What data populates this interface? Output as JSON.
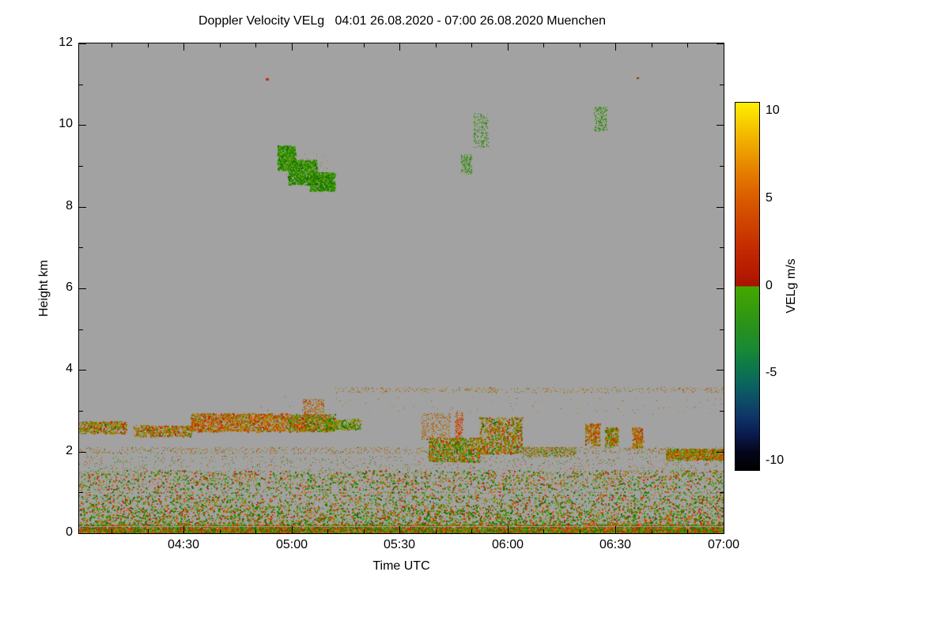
{
  "chart_data": {
    "type": "heatmap",
    "title": "Doppler Velocity VELg   04:01 26.08.2020 - 07:00 26.08.2020 Muenchen",
    "xlabel": "Time UTC",
    "ylabel": "Height km",
    "station": "Muenchen",
    "time_start_label": "04:01 26.08.2020",
    "time_end_label": "07:00 26.08.2020",
    "x_range_minutes": [
      241,
      420
    ],
    "ylim": [
      0,
      12
    ],
    "x_ticks": [
      {
        "minute": 270,
        "label": "04:30"
      },
      {
        "minute": 300,
        "label": "05:00"
      },
      {
        "minute": 330,
        "label": "05:30"
      },
      {
        "minute": 360,
        "label": "06:00"
      },
      {
        "minute": 390,
        "label": "06:30"
      },
      {
        "minute": 420,
        "label": "07:00"
      }
    ],
    "x_minor_minutes": [
      250,
      260,
      280,
      290,
      310,
      320,
      340,
      350,
      370,
      380,
      400,
      410
    ],
    "y_ticks": [
      {
        "km": 0,
        "label": "0"
      },
      {
        "km": 2,
        "label": "2"
      },
      {
        "km": 4,
        "label": "4"
      },
      {
        "km": 6,
        "label": "6"
      },
      {
        "km": 8,
        "label": "8"
      },
      {
        "km": 10,
        "label": "10"
      },
      {
        "km": 12,
        "label": "12"
      }
    ],
    "y_minor_km": [
      1,
      3,
      5,
      7,
      9,
      11
    ],
    "no_data_color": "#a2a2a2",
    "seed": 42,
    "colorbar": {
      "label": "VELg m/s",
      "vmin": -10.5,
      "vmax": 10.5,
      "ticks": [
        {
          "value": 10,
          "label": "10"
        },
        {
          "value": 5,
          "label": "5"
        },
        {
          "value": 0,
          "label": "0"
        },
        {
          "value": -5,
          "label": "-5"
        },
        {
          "value": -10,
          "label": "-10"
        }
      ],
      "stops": [
        [
          -10.5,
          "#000000"
        ],
        [
          -9.5,
          "#05051a"
        ],
        [
          -8.5,
          "#0a1a4d"
        ],
        [
          -7.5,
          "#0e3366"
        ],
        [
          -6.5,
          "#0d4d66"
        ],
        [
          -5.5,
          "#0b665c"
        ],
        [
          -4.5,
          "#0d7a48"
        ],
        [
          -3.5,
          "#1a8a33"
        ],
        [
          -2.5,
          "#278f1f"
        ],
        [
          -1.5,
          "#339910"
        ],
        [
          -0.5,
          "#3fa303"
        ],
        [
          -0.02,
          "#44a800"
        ],
        [
          0.02,
          "#a81200"
        ],
        [
          0.8,
          "#b51b00"
        ],
        [
          2,
          "#c22800"
        ],
        [
          3.2,
          "#cc3d00"
        ],
        [
          4.5,
          "#d55200"
        ],
        [
          5.5,
          "#dd6600"
        ],
        [
          6.5,
          "#e47d00"
        ],
        [
          7.5,
          "#eb9800"
        ],
        [
          8.5,
          "#f2b400"
        ],
        [
          9.5,
          "#f8d200"
        ],
        [
          10.5,
          "#ffee00"
        ]
      ]
    },
    "palettes": {
      "green": [
        "#1e7d00",
        "#2f8f00",
        "#44a000",
        "#176b00",
        "#57a326"
      ],
      "warm": [
        "#c02000",
        "#d03800",
        "#cc5500",
        "#b84100",
        "#de6400"
      ],
      "olive": [
        "#8f7a00",
        "#9c8400",
        "#7f6c00",
        "#ab8c00"
      ]
    },
    "features": [
      {
        "type": "speckle",
        "t": [
          241,
          420
        ],
        "h": [
          0.0,
          1.55
        ],
        "n": 15000,
        "palette": [
          "green",
          "warm",
          "olive"
        ],
        "weights": [
          0.55,
          0.33,
          0.12
        ],
        "bias": 2.2,
        "size": [
          1,
          2
        ]
      },
      {
        "type": "speckle",
        "t": [
          241,
          420
        ],
        "h": [
          0.0,
          0.22
        ],
        "n": 6500,
        "palette": [
          "green",
          "warm"
        ],
        "weights": [
          0.55,
          0.45
        ],
        "size": [
          1,
          2
        ]
      },
      {
        "type": "speckle",
        "t": [
          241,
          420
        ],
        "h": [
          1.2,
          1.9
        ],
        "n": 1600,
        "palette": [
          "green",
          "warm",
          "olive"
        ],
        "weights": [
          0.4,
          0.4,
          0.2
        ],
        "size": [
          1,
          1
        ]
      },
      {
        "type": "hline",
        "t": [
          241,
          420
        ],
        "h": 0.97,
        "color": "#a2a2a2"
      },
      {
        "type": "hline",
        "t": [
          241,
          420
        ],
        "h": 1.05,
        "color": "#a2a2a2"
      },
      {
        "type": "hline",
        "t": [
          241,
          420
        ],
        "h": 0.17,
        "color": "#a2a2a2"
      },
      {
        "type": "speckle",
        "t": [
          241,
          420
        ],
        "h": [
          1.95,
          2.12
        ],
        "n": 1000,
        "palette": [
          "warm",
          "olive",
          "green"
        ],
        "weights": [
          0.4,
          0.4,
          0.2
        ],
        "size": [
          1,
          1
        ]
      },
      {
        "type": "speckle",
        "t": [
          241,
          254
        ],
        "h": [
          2.45,
          2.75
        ],
        "n": 500,
        "palette": [
          "olive",
          "warm",
          "green"
        ],
        "weights": [
          0.5,
          0.3,
          0.2
        ],
        "size": [
          1,
          2
        ]
      },
      {
        "type": "speckle",
        "t": [
          256,
          272
        ],
        "h": [
          2.38,
          2.65
        ],
        "n": 520,
        "palette": [
          "olive",
          "warm",
          "green"
        ],
        "weights": [
          0.5,
          0.35,
          0.15
        ],
        "size": [
          1,
          2
        ]
      },
      {
        "type": "speckle",
        "t": [
          272,
          299
        ],
        "h": [
          2.5,
          2.95
        ],
        "n": 1500,
        "palette": [
          "olive",
          "warm"
        ],
        "weights": [
          0.55,
          0.45
        ],
        "size": [
          1,
          2
        ]
      },
      {
        "type": "speckle",
        "t": [
          299,
          312
        ],
        "h": [
          2.5,
          2.92
        ],
        "n": 800,
        "palette": [
          "olive",
          "warm",
          "green"
        ],
        "weights": [
          0.4,
          0.35,
          0.25
        ],
        "size": [
          1,
          2
        ]
      },
      {
        "type": "speckle",
        "t": [
          303,
          309
        ],
        "h": [
          2.85,
          3.3
        ],
        "n": 320,
        "palette": [
          "warm",
          "olive"
        ],
        "weights": [
          0.6,
          0.4
        ],
        "size": [
          1,
          1
        ]
      },
      {
        "type": "speckle",
        "t": [
          309,
          319
        ],
        "h": [
          2.55,
          2.8
        ],
        "n": 320,
        "palette": [
          "green",
          "olive"
        ],
        "weights": [
          0.5,
          0.5
        ],
        "size": [
          1,
          2
        ]
      },
      {
        "type": "speckle",
        "t": [
          312,
          420
        ],
        "h": [
          3.45,
          3.58
        ],
        "n": 430,
        "palette": [
          "olive",
          "warm"
        ],
        "weights": [
          0.7,
          0.3
        ],
        "size": [
          1,
          1
        ]
      },
      {
        "type": "speckle",
        "t": [
          290,
          420
        ],
        "h": [
          2.9,
          3.35
        ],
        "n": 90,
        "palette": [
          "olive",
          "warm"
        ],
        "weights": [
          0.6,
          0.4
        ],
        "size": [
          1,
          1
        ]
      },
      {
        "type": "speckle",
        "t": [
          296,
          301
        ],
        "h": [
          8.9,
          9.5
        ],
        "n": 700,
        "palette": [
          "green"
        ],
        "size": [
          1,
          2
        ]
      },
      {
        "type": "speckle",
        "t": [
          299,
          307
        ],
        "h": [
          8.55,
          9.15
        ],
        "n": 1200,
        "palette": [
          "green"
        ],
        "size": [
          1,
          2
        ]
      },
      {
        "type": "speckle",
        "t": [
          305,
          312
        ],
        "h": [
          8.4,
          8.85
        ],
        "n": 800,
        "palette": [
          "green"
        ],
        "size": [
          1,
          2
        ]
      },
      {
        "type": "speckle",
        "t": [
          298,
          310
        ],
        "h": [
          8.5,
          9.3
        ],
        "n": 60,
        "palette": [
          "olive"
        ],
        "size": [
          1,
          1
        ]
      },
      {
        "type": "speckle",
        "t": [
          347,
          350
        ],
        "h": [
          8.8,
          9.3
        ],
        "n": 180,
        "palette": [
          "green"
        ],
        "size": [
          1,
          1
        ]
      },
      {
        "type": "speckle",
        "t": [
          350.5,
          354.5
        ],
        "h": [
          9.45,
          10.3
        ],
        "n": 230,
        "palette": [
          "green"
        ],
        "size": [
          1,
          1
        ]
      },
      {
        "type": "speckle",
        "t": [
          384,
          387.5
        ],
        "h": [
          9.85,
          10.45
        ],
        "n": 210,
        "palette": [
          "green"
        ],
        "size": [
          1,
          1
        ]
      },
      {
        "type": "dot",
        "t": 293,
        "h": 11.12,
        "color": "#c03000",
        "w": 4,
        "hp": 3
      },
      {
        "type": "dot",
        "t": 396,
        "h": 11.15,
        "color": "#7a3a00",
        "w": 3,
        "hp": 2
      },
      {
        "type": "speckle",
        "t": [
          345.3,
          347.5
        ],
        "h": [
          2.1,
          3.0
        ],
        "n": 280,
        "palette": [
          "warm"
        ],
        "size": [
          1,
          1
        ]
      },
      {
        "type": "speckle",
        "t": [
          338,
          352
        ],
        "h": [
          1.75,
          2.35
        ],
        "n": 950,
        "palette": [
          "green",
          "olive",
          "warm"
        ],
        "weights": [
          0.45,
          0.3,
          0.25
        ],
        "size": [
          1,
          2
        ]
      },
      {
        "type": "speckle",
        "t": [
          352,
          364
        ],
        "h": [
          1.95,
          2.85
        ],
        "n": 950,
        "palette": [
          "olive",
          "warm",
          "green"
        ],
        "weights": [
          0.5,
          0.25,
          0.25
        ],
        "size": [
          1,
          2
        ]
      },
      {
        "type": "speckle",
        "t": [
          336,
          344
        ],
        "h": [
          2.3,
          2.95
        ],
        "n": 360,
        "palette": [
          "warm",
          "olive"
        ],
        "weights": [
          0.5,
          0.5
        ],
        "size": [
          1,
          1
        ]
      },
      {
        "type": "speckle",
        "t": [
          364,
          379
        ],
        "h": [
          1.88,
          2.12
        ],
        "n": 520,
        "palette": [
          "olive",
          "green",
          "warm"
        ],
        "weights": [
          0.4,
          0.35,
          0.25
        ],
        "size": [
          1,
          1
        ]
      },
      {
        "type": "speckle",
        "t": [
          381.5,
          385.5
        ],
        "h": [
          2.15,
          2.7
        ],
        "n": 280,
        "palette": [
          "olive",
          "warm"
        ],
        "weights": [
          0.6,
          0.4
        ],
        "size": [
          1,
          2
        ]
      },
      {
        "type": "speckle",
        "t": [
          387,
          390.5
        ],
        "h": [
          2.15,
          2.6
        ],
        "n": 260,
        "palette": [
          "olive",
          "green",
          "warm"
        ],
        "weights": [
          0.5,
          0.3,
          0.2
        ],
        "size": [
          1,
          2
        ]
      },
      {
        "type": "speckle",
        "t": [
          394.5,
          397.5
        ],
        "h": [
          2.1,
          2.6
        ],
        "n": 220,
        "palette": [
          "olive",
          "warm"
        ],
        "weights": [
          0.6,
          0.4
        ],
        "size": [
          1,
          2
        ]
      },
      {
        "type": "speckle",
        "t": [
          404,
          420
        ],
        "h": [
          1.8,
          2.08
        ],
        "n": 850,
        "palette": [
          "olive",
          "warm",
          "green"
        ],
        "weights": [
          0.5,
          0.3,
          0.2
        ],
        "size": [
          1,
          2
        ]
      }
    ]
  }
}
